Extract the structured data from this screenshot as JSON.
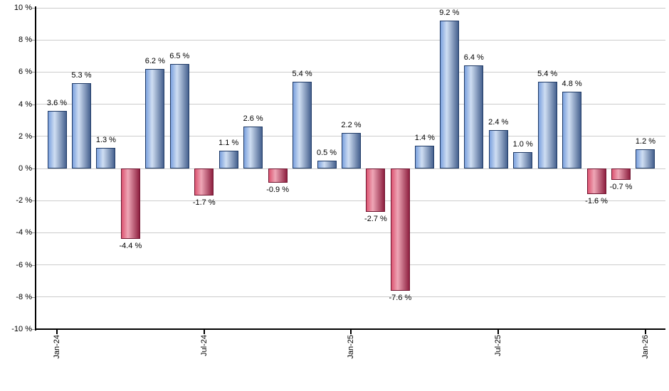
{
  "chart_data": {
    "type": "bar",
    "title": "",
    "xlabel": "",
    "ylabel": "",
    "values": [
      3.6,
      5.3,
      1.3,
      -4.4,
      6.2,
      6.5,
      -1.7,
      1.1,
      2.6,
      -0.9,
      5.4,
      0.5,
      2.2,
      -2.7,
      -7.6,
      1.4,
      9.2,
      6.4,
      2.4,
      1.0,
      5.4,
      4.8,
      -1.6,
      -0.7,
      1.2
    ],
    "value_label_suffix": " %",
    "x_ticks": [
      {
        "bar_index": 0,
        "label": "Jan-24"
      },
      {
        "bar_index": 6,
        "label": "Jul-24"
      },
      {
        "bar_index": 12,
        "label": "Jan-25"
      },
      {
        "bar_index": 18,
        "label": "Jul-25"
      },
      {
        "bar_index": 24,
        "label": "Jan-26"
      }
    ],
    "y_tick_labels": [
      "10 %",
      "8 %",
      "6 %",
      "4 %",
      "2 %",
      "0 %",
      "-2 %",
      "-4 %",
      "-6 %",
      "-8 %",
      "-10 %"
    ],
    "ylim": [
      -10,
      10
    ],
    "y_gridline_step": 2,
    "grid": true,
    "legend": "none",
    "colors": {
      "positive_bar_edge_left": "#7ba1de",
      "positive_bar_highlight": "#cfdef2",
      "positive_bar_edge_right": "#46618f",
      "positive_bar_border": "#1f3a66",
      "negative_bar_edge_left": "#dc5471",
      "negative_bar_highlight": "#eea6b6",
      "negative_bar_edge_right": "#8e2040",
      "negative_bar_border": "#701530",
      "gridline": "#cccccc",
      "axis": "#000000",
      "background": "#ffffff"
    }
  }
}
